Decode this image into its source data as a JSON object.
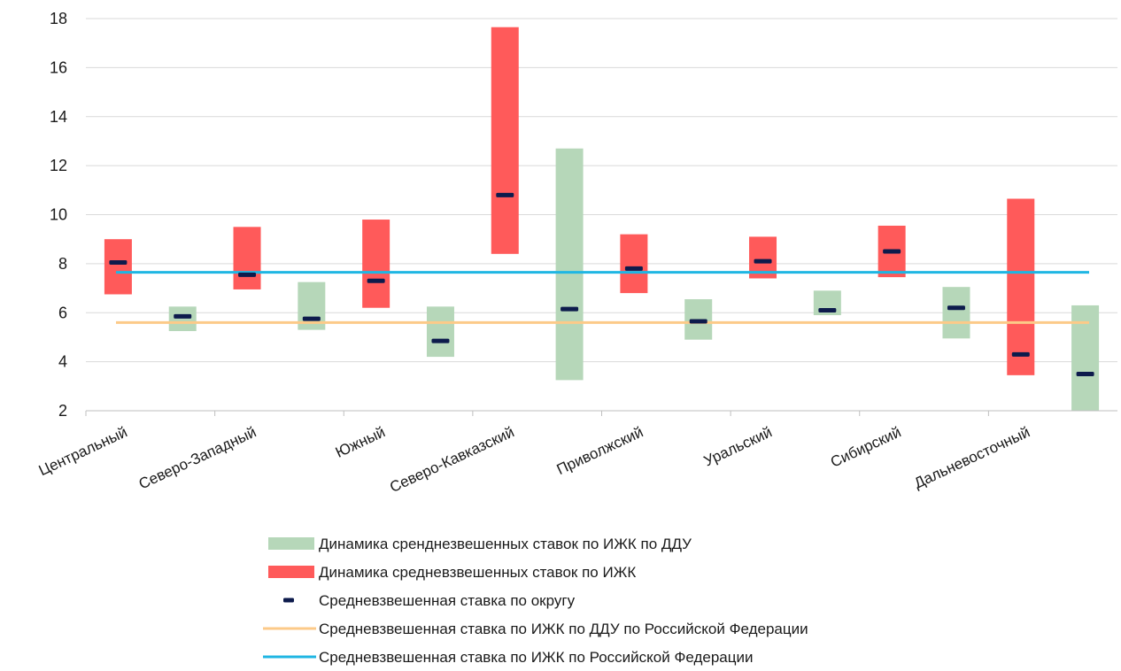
{
  "chart_data": {
    "type": "bar",
    "categories": [
      "Центральный",
      "Северо-Западный",
      "Южный",
      "Северо-Кавказский",
      "Приволжский",
      "Уральский",
      "Сибирский",
      "Дальневосточный"
    ],
    "ylim": [
      2,
      18
    ],
    "yticks": [
      2,
      4,
      6,
      8,
      10,
      12,
      14,
      16,
      18
    ],
    "grid": true,
    "legend_position": "bottom",
    "series": [
      {
        "name": "Динамика сренднезвешенных ставок по ИЖК по ДДУ",
        "kind": "range",
        "color": "#b6d7b9",
        "ranges": [
          [
            5.25,
            6.25
          ],
          [
            5.3,
            7.25
          ],
          [
            4.2,
            6.25
          ],
          [
            3.25,
            12.7
          ],
          [
            4.9,
            6.55
          ],
          [
            5.9,
            6.9
          ],
          [
            4.95,
            7.05
          ],
          [
            2.0,
            6.3
          ]
        ],
        "averages": [
          5.85,
          5.75,
          4.85,
          6.15,
          5.65,
          6.1,
          6.2,
          3.5
        ]
      },
      {
        "name": "Динамика средневзвешенных ставок по ИЖК",
        "kind": "range",
        "color": "#ff5a5a",
        "ranges": [
          [
            6.75,
            9.0
          ],
          [
            6.95,
            9.5
          ],
          [
            6.2,
            9.8
          ],
          [
            8.4,
            17.65
          ],
          [
            6.8,
            9.2
          ],
          [
            7.4,
            9.1
          ],
          [
            7.45,
            9.55
          ],
          [
            3.45,
            10.65
          ]
        ],
        "averages": [
          8.05,
          7.55,
          7.3,
          10.8,
          7.8,
          8.1,
          8.5,
          4.3
        ]
      },
      {
        "name": "Средневзвешенная ставка по округу",
        "kind": "marker",
        "color": "#0d1b4c"
      },
      {
        "name": "Средневзвешенная ставка по ИЖК по ДДУ по Российской Федерации",
        "kind": "hline",
        "color": "#fcca88",
        "value": 5.6
      },
      {
        "name": "Средневзвешенная ставка по ИЖК по Российской Федерации",
        "kind": "hline",
        "color": "#1fb6e3",
        "value": 7.65
      }
    ]
  }
}
